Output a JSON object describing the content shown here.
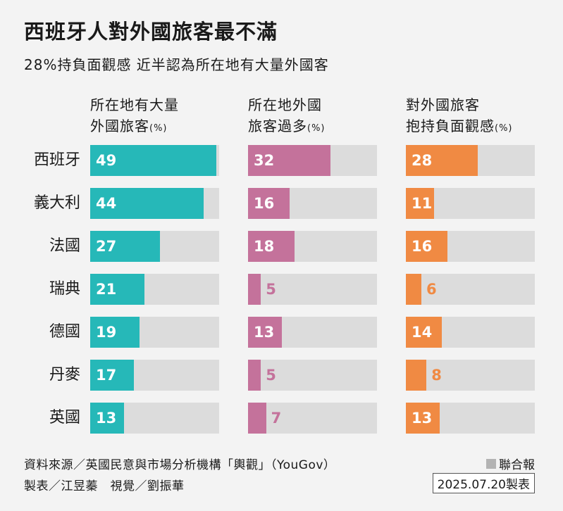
{
  "title": "西班牙人對外國旅客最不滿",
  "subtitle": "28%持負面觀感 近半認為所在地有大量外國客",
  "chart_data": {
    "type": "bar",
    "orientation": "horizontal",
    "categories": [
      "西班牙",
      "義大利",
      "法國",
      "瑞典",
      "德國",
      "丹麥",
      "英國"
    ],
    "xlim": [
      0,
      50
    ],
    "series": [
      {
        "name_line1": "所在地有大量",
        "name_line2": "外國旅客",
        "unit": "(%)",
        "color": "#26b8b8",
        "values": [
          49,
          44,
          27,
          21,
          19,
          17,
          13
        ]
      },
      {
        "name_line1": "所在地外國",
        "name_line2": "旅客過多",
        "unit": "(%)",
        "color": "#c4729b",
        "values": [
          32,
          16,
          18,
          5,
          13,
          5,
          7
        ]
      },
      {
        "name_line1": "對外國旅客",
        "name_line2": "抱持負面觀感",
        "unit": "(%)",
        "color": "#f08a43",
        "values": [
          28,
          11,
          16,
          6,
          14,
          8,
          13
        ]
      }
    ]
  },
  "footer": {
    "source": "資料來源／英國民意與市場分析機構「輿觀」（YouGov）",
    "credits": "製表／江昱蓁　視覺／劉振華",
    "brand": "聯合報",
    "date": "2025.07.20製表"
  }
}
